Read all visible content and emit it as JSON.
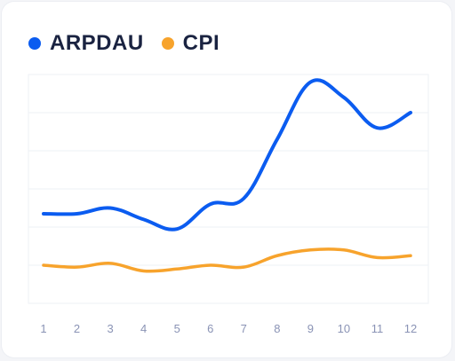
{
  "chart_data": {
    "type": "line",
    "categories": [
      "1",
      "2",
      "3",
      "4",
      "5",
      "6",
      "7",
      "8",
      "9",
      "10",
      "11",
      "12"
    ],
    "series": [
      {
        "name": "ARPDAU",
        "color": "#0b5cf0",
        "values": [
          2.35,
          2.35,
          2.5,
          2.2,
          1.95,
          2.6,
          2.75,
          4.3,
          5.8,
          5.4,
          4.6,
          5.0
        ]
      },
      {
        "name": "CPI",
        "color": "#f7a32c",
        "values": [
          1.0,
          0.95,
          1.05,
          0.85,
          0.9,
          1.0,
          0.95,
          1.25,
          1.4,
          1.4,
          1.2,
          1.25
        ]
      }
    ],
    "ylim": [
      0,
      6
    ],
    "grid": true,
    "legend_position": "top-left"
  }
}
